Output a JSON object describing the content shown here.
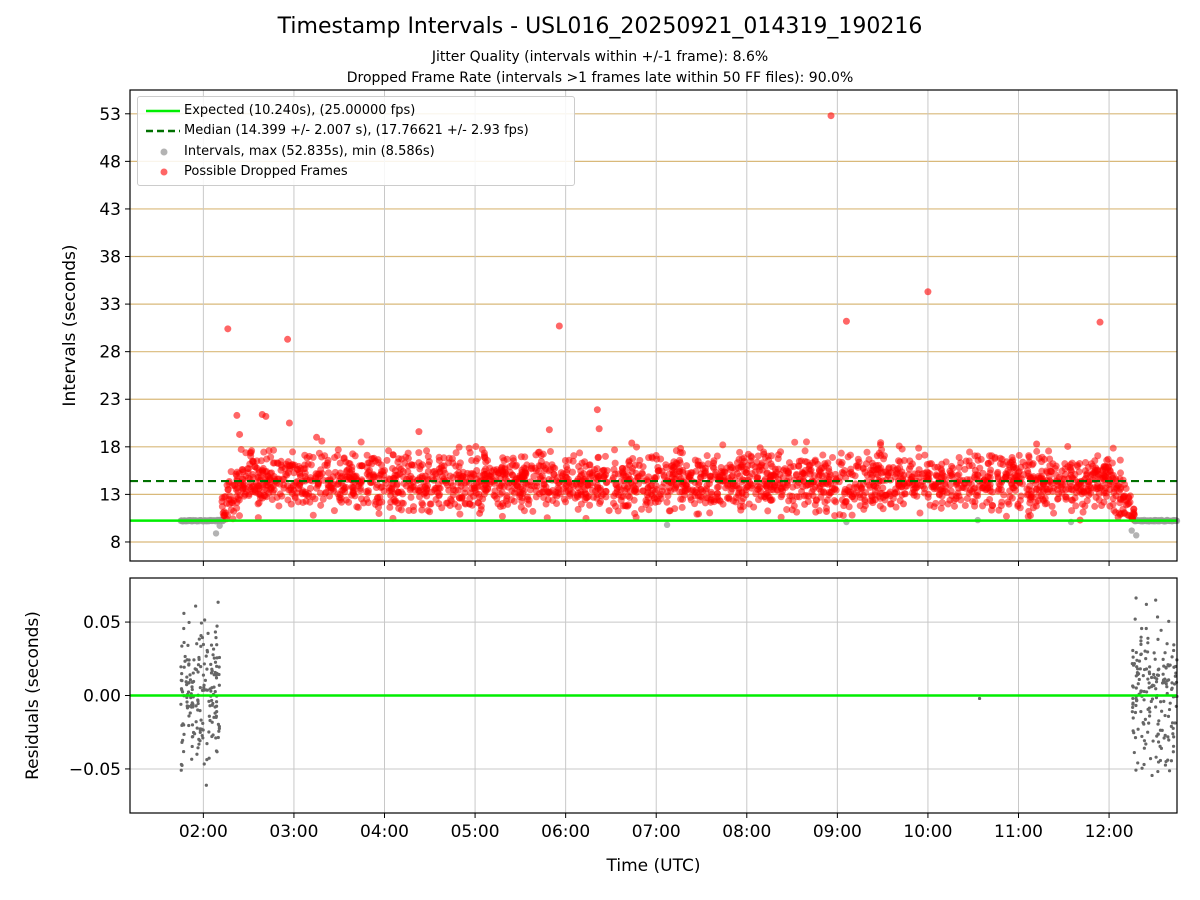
{
  "figure": {
    "title": "Timestamp Intervals - USL016_20250921_014319_190216",
    "subtitle_1": "Jitter Quality (intervals within +/-1 frame): 8.6%",
    "subtitle_2": "Dropped Frame Rate (intervals >1 frames late within 50 FF files): 90.0%"
  },
  "legend": {
    "expected": "Expected (10.240s), (25.00000 fps)",
    "median": "Median (14.399 +/- 2.007 s), (17.76621 +/- 2.93 fps)",
    "intervals": "Intervals, max (52.835s), min (8.586s)",
    "dropped": "Possible Dropped Frames"
  },
  "colors": {
    "expected": "#00ee00",
    "median": "#007000",
    "intervals": "#9a9a9a",
    "dropped": "#ff0000",
    "residuals": "#666666",
    "hgrid_top": "#d9b97a",
    "grid": "#c8c8c8"
  },
  "chart_data": [
    {
      "type": "scatter",
      "ylabel": "Intervals (seconds)",
      "xlabel": "",
      "x_unit": "hours UTC",
      "xlim": [
        1.19,
        12.75
      ],
      "ylim": [
        6.0,
        55.5
      ],
      "yticks": [
        8,
        13,
        18,
        23,
        28,
        33,
        38,
        43,
        48,
        53
      ],
      "grid": "horizontal tan lines at y ticks, vertical gray lines at x ticks",
      "legend_position": "top-left",
      "expected_line": 10.24,
      "median_line": 14.399,
      "intervals": {
        "name": "Intervals, max (52.835s), min (8.586s)",
        "max": 52.835,
        "min": 8.586,
        "normal_clusters": [
          {
            "x_range": [
              1.75,
              2.22
            ],
            "y": 10.24
          },
          {
            "x_range": [
              12.28,
              12.75
            ],
            "y": 10.24
          }
        ],
        "outliers": [
          [
            2.14,
            8.9
          ],
          [
            2.18,
            9.7
          ],
          [
            7.12,
            9.8
          ],
          [
            9.1,
            10.1
          ],
          [
            10.55,
            10.3
          ],
          [
            11.58,
            10.1
          ],
          [
            12.25,
            9.2
          ],
          [
            12.3,
            8.7
          ]
        ]
      },
      "dropped_frames": {
        "name": "Possible Dropped Frames",
        "band_x_range": [
          2.2,
          12.28
        ],
        "band_center": 14.4,
        "band_spread": 2.0,
        "outliers": [
          [
            2.27,
            30.4
          ],
          [
            2.93,
            29.3
          ],
          [
            5.93,
            30.7
          ],
          [
            8.93,
            52.8
          ],
          [
            9.1,
            31.2
          ],
          [
            10.0,
            34.3
          ],
          [
            11.9,
            31.1
          ],
          [
            2.37,
            21.3
          ],
          [
            2.65,
            21.4
          ],
          [
            2.69,
            21.2
          ],
          [
            2.95,
            20.5
          ],
          [
            4.38,
            19.6
          ],
          [
            5.82,
            19.8
          ],
          [
            6.35,
            21.9
          ],
          [
            6.37,
            19.9
          ],
          [
            2.4,
            19.3
          ],
          [
            3.25,
            19.0
          ],
          [
            6.73,
            18.4
          ],
          [
            11.2,
            18.3
          ]
        ],
        "low_points": [
          [
            8.88,
            11.2
          ],
          [
            9.73,
            12.0
          ],
          [
            11.68,
            10.3
          ],
          [
            12.1,
            10.6
          ],
          [
            5.05,
            11.0
          ],
          [
            6.48,
            11.3
          ]
        ]
      }
    },
    {
      "type": "scatter",
      "ylabel": "Residuals (seconds)",
      "xlabel": "Time (UTC)",
      "xlim": [
        1.19,
        12.75
      ],
      "ylim": [
        -0.08,
        0.08
      ],
      "yticks": [
        -0.05,
        0.0,
        0.05
      ],
      "ytick_labels": [
        "−0.05",
        "0.00",
        "0.05"
      ],
      "xticks": [
        2,
        3,
        4,
        5,
        6,
        7,
        8,
        9,
        10,
        11,
        12
      ],
      "xtick_labels": [
        "02:00",
        "03:00",
        "04:00",
        "05:00",
        "06:00",
        "07:00",
        "08:00",
        "09:00",
        "10:00",
        "11:00",
        "12:00"
      ],
      "zero_line": 0.0,
      "residuals": {
        "clusters": [
          {
            "x_range": [
              1.75,
              2.18
            ],
            "spread": 0.022
          },
          {
            "x_range": [
              12.25,
              12.75
            ],
            "spread": 0.024
          }
        ],
        "single_points": [
          [
            10.57,
            -0.002
          ]
        ]
      }
    }
  ]
}
